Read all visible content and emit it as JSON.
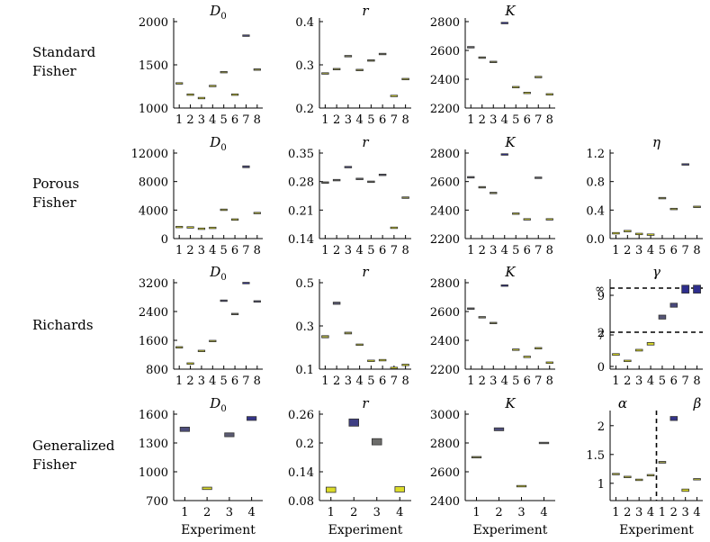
{
  "row_labels": [
    {
      "line1": "Standard",
      "line2": "Fisher"
    },
    {
      "line1": "Porous",
      "line2": "Fisher"
    },
    {
      "line1": "Richards",
      "line2": ""
    },
    {
      "line1": "Generalized",
      "line2": "Fisher"
    }
  ],
  "x_axis_label": "Experiment",
  "palette": {
    "low": "#f5f51a",
    "high": "#2b2b8f",
    "edge": "#333333",
    "axis": "#000000"
  },
  "chart_data": [
    {
      "id": "sf-D0",
      "type": "bar-range",
      "title": "D0",
      "title_base": "D",
      "title_sub": "0",
      "categories": [
        "1",
        "2",
        "3",
        "4",
        "5",
        "6",
        "7",
        "8"
      ],
      "ylim": [
        1000,
        2000
      ],
      "yticks": [
        1000,
        1500,
        2000
      ],
      "ytick_labels": [
        "1000",
        "1500",
        "2000"
      ],
      "ranges": [
        [
          1280,
          1290
        ],
        [
          1150,
          1160
        ],
        [
          1110,
          1120
        ],
        [
          1250,
          1260
        ],
        [
          1410,
          1420
        ],
        [
          1150,
          1160
        ],
        [
          1830,
          1845
        ],
        [
          1440,
          1450
        ]
      ]
    },
    {
      "id": "sf-r",
      "type": "bar-range",
      "title": "r",
      "categories": [
        "1",
        "2",
        "3",
        "4",
        "5",
        "6",
        "7",
        "8"
      ],
      "ylim": [
        0.2,
        0.4
      ],
      "yticks": [
        0.2,
        0.3,
        0.4
      ],
      "ytick_labels": [
        "0.2",
        "0.3",
        "0.4"
      ],
      "ranges": [
        [
          0.279,
          0.281
        ],
        [
          0.289,
          0.291
        ],
        [
          0.319,
          0.321
        ],
        [
          0.287,
          0.289
        ],
        [
          0.309,
          0.311
        ],
        [
          0.324,
          0.326
        ],
        [
          0.227,
          0.229
        ],
        [
          0.266,
          0.268
        ]
      ]
    },
    {
      "id": "sf-K",
      "type": "bar-range",
      "title": "K",
      "categories": [
        "1",
        "2",
        "3",
        "4",
        "5",
        "6",
        "7",
        "8"
      ],
      "ylim": [
        2200,
        2800
      ],
      "yticks": [
        2200,
        2400,
        2600,
        2800
      ],
      "ytick_labels": [
        "2200",
        "2400",
        "2600",
        "2800"
      ],
      "ranges": [
        [
          2620,
          2624
        ],
        [
          2548,
          2552
        ],
        [
          2518,
          2522
        ],
        [
          2788,
          2792
        ],
        [
          2343,
          2347
        ],
        [
          2303,
          2307
        ],
        [
          2413,
          2417
        ],
        [
          2293,
          2297
        ]
      ]
    },
    {
      "id": "pf-D0",
      "type": "bar-range",
      "title": "D0",
      "title_base": "D",
      "title_sub": "0",
      "categories": [
        "1",
        "2",
        "3",
        "4",
        "5",
        "6",
        "7",
        "8"
      ],
      "ylim": [
        0,
        12000
      ],
      "yticks": [
        0,
        4000,
        8000,
        12000
      ],
      "ytick_labels": [
        "0",
        "4000",
        "8000",
        "12000"
      ],
      "ranges": [
        [
          1600,
          1640
        ],
        [
          1550,
          1590
        ],
        [
          1360,
          1400
        ],
        [
          1480,
          1520
        ],
        [
          4020,
          4060
        ],
        [
          2650,
          2690
        ],
        [
          9950,
          10200
        ],
        [
          3560,
          3600
        ]
      ]
    },
    {
      "id": "pf-r",
      "type": "bar-range",
      "title": "r",
      "categories": [
        "1",
        "2",
        "3",
        "4",
        "5",
        "6",
        "7",
        "8"
      ],
      "ylim": [
        0.14,
        0.35
      ],
      "yticks": [
        0.14,
        0.21,
        0.28,
        0.35
      ],
      "ytick_labels": [
        "0.14",
        "0.21",
        "0.28",
        "0.35"
      ],
      "ranges": [
        [
          0.2765,
          0.2785
        ],
        [
          0.2825,
          0.2845
        ],
        [
          0.3145,
          0.3165
        ],
        [
          0.2855,
          0.2875
        ],
        [
          0.2785,
          0.2805
        ],
        [
          0.2955,
          0.2975
        ],
        [
          0.1655,
          0.1675
        ],
        [
          0.2395,
          0.2415
        ]
      ]
    },
    {
      "id": "pf-K",
      "type": "bar-range",
      "title": "K",
      "categories": [
        "1",
        "2",
        "3",
        "4",
        "5",
        "6",
        "7",
        "8"
      ],
      "ylim": [
        2200,
        2800
      ],
      "yticks": [
        2200,
        2400,
        2600,
        2800
      ],
      "ytick_labels": [
        "2200",
        "2400",
        "2600",
        "2800"
      ],
      "ranges": [
        [
          2628,
          2632
        ],
        [
          2558,
          2562
        ],
        [
          2518,
          2522
        ],
        [
          2788,
          2792
        ],
        [
          2373,
          2377
        ],
        [
          2333,
          2337
        ],
        [
          2623,
          2630
        ],
        [
          2333,
          2337
        ]
      ]
    },
    {
      "id": "pf-eta",
      "type": "bar-range",
      "title": "η",
      "categories": [
        "1",
        "2",
        "3",
        "4",
        "5",
        "6",
        "7",
        "8"
      ],
      "ylim": [
        0,
        1.2
      ],
      "yticks": [
        0,
        0.4,
        0.8,
        1.2
      ],
      "ytick_labels": [
        "0.0",
        "0.4",
        "0.8",
        "1.2"
      ],
      "ranges": [
        [
          0.07,
          0.08
        ],
        [
          0.1,
          0.11
        ],
        [
          0.06,
          0.07
        ],
        [
          0.05,
          0.06
        ],
        [
          0.56,
          0.575
        ],
        [
          0.41,
          0.42
        ],
        [
          1.03,
          1.05
        ],
        [
          0.44,
          0.45
        ]
      ]
    },
    {
      "id": "ri-D0",
      "type": "bar-range",
      "title": "D0",
      "title_base": "D",
      "title_sub": "0",
      "categories": [
        "1",
        "2",
        "3",
        "4",
        "5",
        "6",
        "7",
        "8"
      ],
      "ylim": [
        800,
        3200
      ],
      "yticks": [
        800,
        1600,
        2400,
        3200
      ],
      "ytick_labels": [
        "800",
        "1600",
        "2400",
        "3200"
      ],
      "ranges": [
        [
          1390,
          1420
        ],
        [
          945,
          965
        ],
        [
          1290,
          1320
        ],
        [
          1560,
          1600
        ],
        [
          2690,
          2710
        ],
        [
          2320,
          2340
        ],
        [
          3180,
          3200
        ],
        [
          2670,
          2690
        ]
      ]
    },
    {
      "id": "ri-r",
      "type": "bar-range",
      "title": "r",
      "categories": [
        "1",
        "2",
        "3",
        "4",
        "5",
        "6",
        "7",
        "8"
      ],
      "ylim": [
        0.1,
        0.5
      ],
      "yticks": [
        0.1,
        0.3,
        0.5
      ],
      "ytick_labels": [
        "0.1",
        "0.3",
        "0.5"
      ],
      "ranges": [
        [
          0.245,
          0.255
        ],
        [
          0.4,
          0.41
        ],
        [
          0.263,
          0.271
        ],
        [
          0.21,
          0.216
        ],
        [
          0.137,
          0.14
        ],
        [
          0.14,
          0.143
        ],
        [
          0.104,
          0.107
        ],
        [
          0.118,
          0.121
        ]
      ]
    },
    {
      "id": "ri-K",
      "type": "bar-range",
      "title": "K",
      "categories": [
        "1",
        "2",
        "3",
        "4",
        "5",
        "6",
        "7",
        "8"
      ],
      "ylim": [
        2200,
        2800
      ],
      "yticks": [
        2200,
        2400,
        2600,
        2800
      ],
      "ytick_labels": [
        "2200",
        "2400",
        "2600",
        "2800"
      ],
      "ranges": [
        [
          2618,
          2622
        ],
        [
          2558,
          2562
        ],
        [
          2518,
          2522
        ],
        [
          2778,
          2782
        ],
        [
          2333,
          2337
        ],
        [
          2283,
          2287
        ],
        [
          2343,
          2347
        ],
        [
          2243,
          2247
        ]
      ]
    },
    {
      "id": "ri-gamma",
      "type": "bar-range-broken-axis",
      "title": "γ",
      "categories": [
        "1",
        "2",
        "3",
        "4",
        "5",
        "6",
        "7",
        "8"
      ],
      "axis_note": "broken axis: lower segment 0–2, upper segment 7–9 then ∞",
      "ytick_labels": [
        "0",
        "2",
        "7",
        "9",
        "∞"
      ],
      "dashed_lines_at": [
        "2",
        "∞"
      ],
      "ranges": [
        [
          0.65,
          0.75
        ],
        [
          0.3,
          0.35
        ],
        [
          0.9,
          1.0
        ],
        [
          1.25,
          1.4
        ],
        [
          7.8,
          8.0
        ],
        [
          8.4,
          8.6
        ],
        [
          9.3,
          10.4
        ],
        [
          9.3,
          10.4
        ]
      ]
    },
    {
      "id": "gf-D0",
      "type": "bar-range",
      "title": "D0",
      "title_base": "D",
      "title_sub": "0",
      "categories": [
        "1",
        "2",
        "3",
        "4"
      ],
      "ylim": [
        700,
        1600
      ],
      "yticks": [
        700,
        1000,
        1300,
        1600
      ],
      "ytick_labels": [
        "700",
        "1000",
        "1300",
        "1600"
      ],
      "ranges": [
        [
          1420,
          1465
        ],
        [
          815,
          840
        ],
        [
          1365,
          1405
        ],
        [
          1535,
          1575
        ]
      ]
    },
    {
      "id": "gf-r",
      "type": "bar-range",
      "title": "r",
      "categories": [
        "1",
        "2",
        "3",
        "4"
      ],
      "ylim": [
        0.08,
        0.26
      ],
      "yticks": [
        0.08,
        0.14,
        0.2,
        0.26
      ],
      "ytick_labels": [
        "0.08",
        "0.14",
        "0.2",
        "0.26"
      ],
      "ranges": [
        [
          0.097,
          0.108
        ],
        [
          0.235,
          0.25
        ],
        [
          0.196,
          0.209
        ],
        [
          0.098,
          0.109
        ]
      ]
    },
    {
      "id": "gf-K",
      "type": "bar-range",
      "title": "K",
      "categories": [
        "1",
        "2",
        "3",
        "4"
      ],
      "ylim": [
        2400,
        3000
      ],
      "yticks": [
        2400,
        2600,
        2800,
        3000
      ],
      "ytick_labels": [
        "2400",
        "2600",
        "2800",
        "3000"
      ],
      "ranges": [
        [
          2698,
          2704
        ],
        [
          2885,
          2905
        ],
        [
          2497,
          2503
        ],
        [
          2797,
          2803
        ]
      ]
    },
    {
      "id": "gf-alpha-beta",
      "type": "bar-range",
      "title": "α",
      "title_right": "β",
      "categories": [
        "1",
        "2",
        "3",
        "4",
        "1",
        "2",
        "3",
        "4"
      ],
      "ylim": [
        0.7,
        2.2
      ],
      "yticks": [
        1,
        1.5,
        2
      ],
      "ytick_labels": [
        "1",
        "1.5",
        "2"
      ],
      "divider_after": 4,
      "ranges": [
        [
          1.15,
          1.17
        ],
        [
          1.1,
          1.12
        ],
        [
          1.05,
          1.07
        ],
        [
          1.13,
          1.15
        ],
        [
          1.35,
          1.38
        ],
        [
          2.09,
          2.16
        ],
        [
          0.86,
          0.9
        ],
        [
          1.06,
          1.08
        ]
      ]
    }
  ]
}
